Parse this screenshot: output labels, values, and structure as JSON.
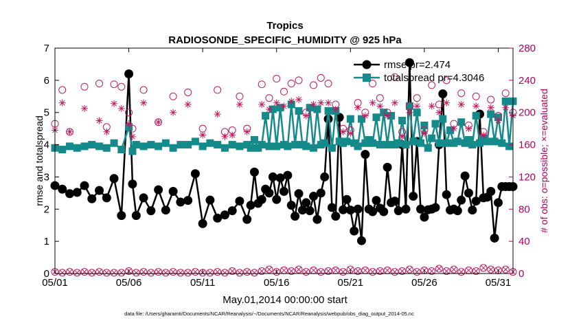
{
  "chart_data": {
    "type": "line",
    "title": "Tropics",
    "subtitle": "RADIOSONDE_SPECIFIC_HUMIDITY @ 925 hPa",
    "xlabel": "May.01,2014 00:00:00 start",
    "ylabel_left": "rmse and totalspread",
    "ylabel_right": "# of obs: o=possible; ×=evaluated",
    "footer": "data file: /Users/gharamti/Documents/NCAR/Reanalysis/~/Documents/NCAR/Reanalysis/webpub/obs_diag_output_2014-05.nc",
    "xlim": [
      0,
      31
    ],
    "ylim_left": [
      0,
      7
    ],
    "ylim_right": [
      0,
      280
    ],
    "x_ticks": [
      0,
      5,
      10,
      15,
      20,
      25,
      30
    ],
    "x_tick_labels": [
      "05/01",
      "05/06",
      "05/11",
      "05/16",
      "05/21",
      "05/26",
      "05/31"
    ],
    "y_ticks_left": [
      0,
      1,
      2,
      3,
      4,
      5,
      6,
      7
    ],
    "y_ticks_right": [
      0,
      40,
      80,
      120,
      160,
      200,
      240,
      280
    ],
    "colors": {
      "rmse": "#000000",
      "spread": "#158a8a",
      "obs": "#c2185b",
      "right_axis": "#b3005e"
    },
    "series": [
      {
        "name": "rmse",
        "legend": "rmse pr=2.474",
        "axis": "left",
        "x": [
          0.0,
          0.5,
          1.0,
          1.5,
          2.0,
          2.5,
          3.0,
          3.5,
          4.0,
          4.5,
          5.0,
          5.25,
          5.5,
          6.0,
          6.5,
          7.0,
          7.5,
          8.0,
          8.5,
          9.0,
          9.5,
          10.0,
          10.5,
          11.0,
          11.5,
          12.0,
          12.5,
          13.0,
          13.25,
          13.5,
          13.75,
          14.0,
          14.25,
          14.5,
          14.75,
          15.0,
          15.25,
          15.5,
          15.75,
          16.0,
          16.25,
          16.5,
          16.75,
          17.0,
          17.25,
          17.5,
          17.75,
          18.0,
          18.25,
          18.5,
          18.75,
          19.0,
          19.25,
          19.5,
          19.75,
          20.0,
          20.25,
          20.5,
          20.75,
          21.0,
          21.25,
          21.5,
          21.75,
          22.0,
          22.25,
          22.5,
          22.75,
          23.0,
          23.25,
          23.5,
          23.75,
          24.0,
          24.25,
          24.5,
          24.75,
          25.0,
          25.25,
          25.5,
          25.75,
          26.0,
          26.25,
          26.5,
          26.75,
          27.0,
          27.25,
          27.5,
          27.75,
          28.0,
          28.25,
          28.5,
          28.75,
          29.0,
          29.25,
          29.5,
          29.75,
          30.0,
          30.25,
          30.5,
          30.75,
          31.0
        ],
        "values": [
          2.73,
          2.62,
          2.48,
          2.52,
          2.73,
          2.32,
          2.58,
          2.35,
          2.95,
          1.8,
          6.2,
          2.78,
          1.8,
          2.35,
          1.95,
          2.6,
          1.97,
          2.55,
          2.22,
          2.27,
          3.1,
          1.55,
          2.28,
          1.72,
          1.82,
          1.95,
          2.25,
          1.68,
          2.12,
          3.15,
          2.18,
          2.3,
          2.62,
          2.5,
          3.0,
          2.3,
          2.97,
          2.55,
          3.05,
          2.12,
          1.78,
          2.48,
          1.97,
          2.2,
          1.95,
          2.4,
          1.68,
          2.5,
          3.0,
          4.8,
          2.05,
          1.78,
          4.85,
          1.98,
          2.3,
          1.97,
          1.32,
          2.0,
          1.02,
          3.7,
          2.0,
          1.92,
          2.27,
          2.03,
          1.92,
          3.3,
          2.2,
          2.25,
          1.95,
          4.0,
          2.0,
          6.55,
          2.4,
          4.1,
          2.0,
          1.75,
          1.98,
          2.0,
          2.05,
          4.0,
          5.58,
          2.45,
          1.97,
          2.0,
          1.95,
          2.28,
          3.03,
          2.5,
          1.97,
          2.25,
          4.95,
          2.35,
          2.37,
          2.55,
          1.1,
          2.2,
          2.7,
          2.7,
          2.7,
          2.7
        ]
      },
      {
        "name": "totalspread",
        "legend": "totalspread pr=4.3046",
        "axis": "left",
        "x": [
          0.0,
          0.5,
          1.0,
          1.5,
          2.0,
          2.5,
          3.0,
          3.5,
          4.0,
          4.5,
          5.0,
          5.25,
          5.5,
          6.0,
          6.5,
          7.0,
          7.5,
          8.0,
          8.5,
          9.0,
          9.5,
          10.0,
          10.5,
          11.0,
          11.5,
          12.0,
          12.5,
          13.0,
          13.25,
          13.5,
          13.75,
          14.0,
          14.25,
          14.5,
          14.75,
          15.0,
          15.25,
          15.5,
          15.75,
          16.0,
          16.25,
          16.5,
          16.75,
          17.0,
          17.25,
          17.5,
          17.75,
          18.0,
          18.25,
          18.5,
          18.75,
          19.0,
          19.25,
          19.5,
          19.75,
          20.0,
          20.25,
          20.5,
          20.75,
          21.0,
          21.25,
          21.5,
          21.75,
          22.0,
          22.25,
          22.5,
          22.75,
          23.0,
          23.25,
          23.5,
          23.75,
          24.0,
          24.25,
          24.5,
          24.75,
          25.0,
          25.25,
          25.5,
          25.75,
          26.0,
          26.25,
          26.5,
          26.75,
          27.0,
          27.25,
          27.5,
          27.75,
          28.0,
          28.25,
          28.5,
          28.75,
          29.0,
          29.25,
          29.5,
          29.75,
          30.0,
          30.25,
          30.5,
          30.75,
          31.0
        ],
        "values": [
          3.9,
          3.85,
          3.95,
          3.9,
          3.95,
          4.0,
          3.95,
          3.9,
          4.05,
          3.85,
          4.55,
          3.8,
          4.0,
          3.95,
          4.0,
          3.95,
          4.05,
          3.9,
          4.0,
          4.0,
          4.1,
          3.95,
          4.05,
          4.0,
          3.9,
          4.0,
          3.95,
          4.0,
          3.9,
          4.15,
          3.9,
          4.0,
          4.9,
          3.95,
          5.1,
          3.95,
          5.15,
          4.0,
          3.95,
          5.25,
          4.0,
          5.05,
          4.0,
          3.95,
          5.15,
          3.9,
          5.1,
          4.0,
          4.05,
          5.05,
          3.9,
          5.05,
          4.1,
          4.05,
          4.1,
          4.8,
          4.05,
          3.95,
          4.8,
          4.05,
          4.15,
          4.05,
          4.85,
          4.0,
          5.0,
          4.0,
          4.9,
          4.0,
          4.05,
          4.75,
          4.0,
          5.2,
          4.1,
          5.0,
          4.05,
          4.6,
          3.9,
          4.2,
          4.65,
          4.05,
          4.8,
          4.05,
          4.45,
          4.05,
          4.1,
          4.7,
          4.05,
          4.15,
          4.0,
          4.9,
          4.05,
          4.2,
          4.1,
          4.95,
          4.1,
          4.85,
          4.05,
          5.35,
          3.95,
          5.35
        ]
      },
      {
        "name": "obs possible",
        "axis": "right",
        "marker": "circle",
        "x": [
          0.0,
          0.5,
          1.0,
          2.0,
          3.0,
          3.5,
          4.0,
          4.5,
          5.0,
          5.25,
          6.0,
          7.0,
          8.0,
          9.0,
          10.0,
          11.0,
          11.5,
          12.0,
          12.5,
          13.0,
          14.0,
          14.5,
          15.0,
          15.5,
          16.0,
          16.5,
          17.0,
          17.5,
          18.0,
          18.5,
          19.0,
          19.5,
          20.0,
          20.5,
          21.0,
          21.5,
          22.0,
          22.5,
          23.0,
          23.5,
          24.0,
          24.5,
          25.0,
          25.5,
          26.0,
          26.5,
          27.0,
          27.5,
          28.0,
          28.5,
          29.0,
          29.5,
          30.0,
          30.5,
          31.0
        ],
        "values": [
          186,
          228,
          176,
          232,
          236,
          182,
          235,
          232,
          200,
          180,
          228,
          188,
          220,
          225,
          180,
          228,
          176,
          178,
          220,
          180,
          235,
          218,
          242,
          226,
          236,
          240,
          200,
          234,
          243,
          236,
          210,
          180,
          178,
          212,
          200,
          236,
          218,
          200,
          244,
          176,
          208,
          218,
          178,
          234,
          210,
          240,
          186,
          224,
          184,
          220,
          176,
          216,
          196,
          224,
          200
        ]
      },
      {
        "name": "obs evaluated",
        "axis": "right",
        "marker": "asterisk",
        "x": [
          0.0,
          0.5,
          1.0,
          2.0,
          3.0,
          3.5,
          4.0,
          4.5,
          5.0,
          5.25,
          6.0,
          7.0,
          8.0,
          9.0,
          10.0,
          11.0,
          11.5,
          12.0,
          12.5,
          13.0,
          14.0,
          14.5,
          15.0,
          15.5,
          16.0,
          16.5,
          17.0,
          17.5,
          18.0,
          18.5,
          19.0,
          19.5,
          20.0,
          20.5,
          21.0,
          21.5,
          22.0,
          22.5,
          23.0,
          23.5,
          24.0,
          24.5,
          25.0,
          25.5,
          26.0,
          26.5,
          27.0,
          27.5,
          28.0,
          28.5,
          29.0,
          29.5,
          30.0,
          30.5,
          31.0
        ],
        "values": [
          178,
          212,
          176,
          205,
          190,
          176,
          211,
          205,
          186,
          170,
          212,
          188,
          200,
          210,
          172,
          198,
          170,
          172,
          210,
          176,
          210,
          204,
          212,
          208,
          214,
          216,
          196,
          210,
          212,
          212,
          204,
          176,
          174,
          206,
          196,
          212,
          208,
          196,
          212,
          170,
          200,
          208,
          174,
          208,
          200,
          212,
          180,
          210,
          180,
          208,
          172,
          206,
          190,
          206,
          196
        ]
      },
      {
        "name": "obs possible bottom",
        "axis": "right",
        "marker": "circle",
        "x": [
          0.0,
          0.5,
          1.0,
          1.5,
          2.0,
          2.5,
          3.0,
          3.5,
          4.0,
          4.5,
          5.0,
          5.5,
          6.0,
          6.5,
          7.0,
          7.5,
          8.0,
          8.5,
          9.0,
          9.5,
          10.0,
          10.5,
          11.0,
          11.5,
          12.0,
          12.5,
          13.0,
          13.5,
          14.0,
          14.5,
          15.0,
          15.5,
          16.0,
          16.5,
          17.0,
          17.5,
          18.0,
          18.5,
          19.0,
          19.5,
          20.0,
          20.5,
          21.0,
          21.5,
          22.0,
          22.5,
          23.0,
          23.5,
          24.0,
          24.5,
          25.0,
          25.5,
          26.0,
          26.5,
          27.0,
          27.5,
          28.0,
          28.5,
          29.0,
          29.5,
          30.0,
          30.5,
          31.0
        ],
        "values": [
          2,
          1,
          2,
          1,
          2,
          1,
          2,
          1,
          1,
          1,
          3,
          1,
          2,
          1,
          2,
          1,
          2,
          1,
          1,
          2,
          1,
          1,
          2,
          1,
          3,
          1,
          2,
          1,
          3,
          5,
          2,
          4,
          3,
          5,
          2,
          4,
          2,
          3,
          4,
          2,
          5,
          3,
          4,
          2,
          3,
          4,
          2,
          3,
          5,
          2,
          4,
          3,
          6,
          3,
          5,
          2,
          4,
          3,
          7,
          5,
          4,
          5,
          2
        ]
      }
    ],
    "legend_position": "top-right"
  }
}
